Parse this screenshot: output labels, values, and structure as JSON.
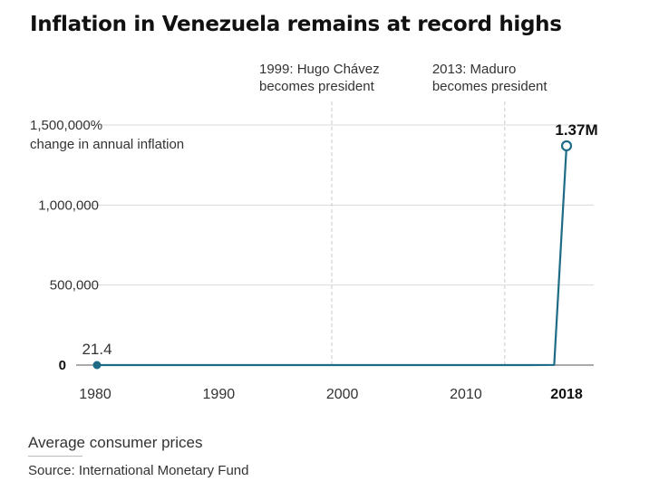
{
  "chart_data": {
    "type": "line",
    "title": "Inflation in Venezuela remains at record highs",
    "y_axis_note": "change in annual inflation",
    "y_ticks": [
      {
        "value": 0,
        "label": "0"
      },
      {
        "value": 500000,
        "label": "500,000"
      },
      {
        "value": 1000000,
        "label": "1,000,000"
      },
      {
        "value": 1500000,
        "label": "1,500,000%"
      }
    ],
    "x_ticks": [
      {
        "value": 1980,
        "label": "1980"
      },
      {
        "value": 1990,
        "label": "1990"
      },
      {
        "value": 2000,
        "label": "2000"
      },
      {
        "value": 2010,
        "label": "2010"
      },
      {
        "value": 2018,
        "label": "2018"
      }
    ],
    "xlim": [
      1980,
      2018
    ],
    "ylim": [
      0,
      1500000
    ],
    "grid": "horizontal",
    "series": [
      {
        "x": [
          1980,
          1981,
          1982,
          1983,
          1984,
          1985,
          1986,
          1987,
          1988,
          1989,
          1990,
          1991,
          1992,
          1993,
          1994,
          1995,
          1996,
          1997,
          1998,
          1999,
          2000,
          2001,
          2002,
          2003,
          2004,
          2005,
          2006,
          2007,
          2008,
          2009,
          2010,
          2011,
          2012,
          2013,
          2014,
          2015,
          2016,
          2017,
          2018
        ],
        "y": [
          21.4,
          16.2,
          9.6,
          6.3,
          12.2,
          11.4,
          11.5,
          28.1,
          29.5,
          84.5,
          40.7,
          34.2,
          31.4,
          38.1,
          60.8,
          59.9,
          99.9,
          50.0,
          35.8,
          23.6,
          16.2,
          12.5,
          22.4,
          31.1,
          21.7,
          16.0,
          13.7,
          18.7,
          31.4,
          27.1,
          28.2,
          26.1,
          21.1,
          40.6,
          62.2,
          121.7,
          254.9,
          1087.5,
          1370000
        ]
      }
    ],
    "annotations": {
      "start": {
        "x": 1980,
        "y": 21.4,
        "label": "21.4"
      },
      "end": {
        "x": 2018,
        "y": 1370000,
        "label": "1.37M"
      }
    },
    "events": [
      {
        "x": 1999,
        "line1": "1999: Hugo Chávez",
        "line2": "becomes president"
      },
      {
        "x": 2013,
        "line1": "2013: Maduro",
        "line2": "becomes president"
      }
    ],
    "note": "Average consumer prices",
    "source": "Source: International Monetary Fund",
    "colors": {
      "line": "#1d6b86",
      "grid": "#d9d9d9",
      "event_line": "#c9c9c9",
      "text": "#333333"
    }
  }
}
